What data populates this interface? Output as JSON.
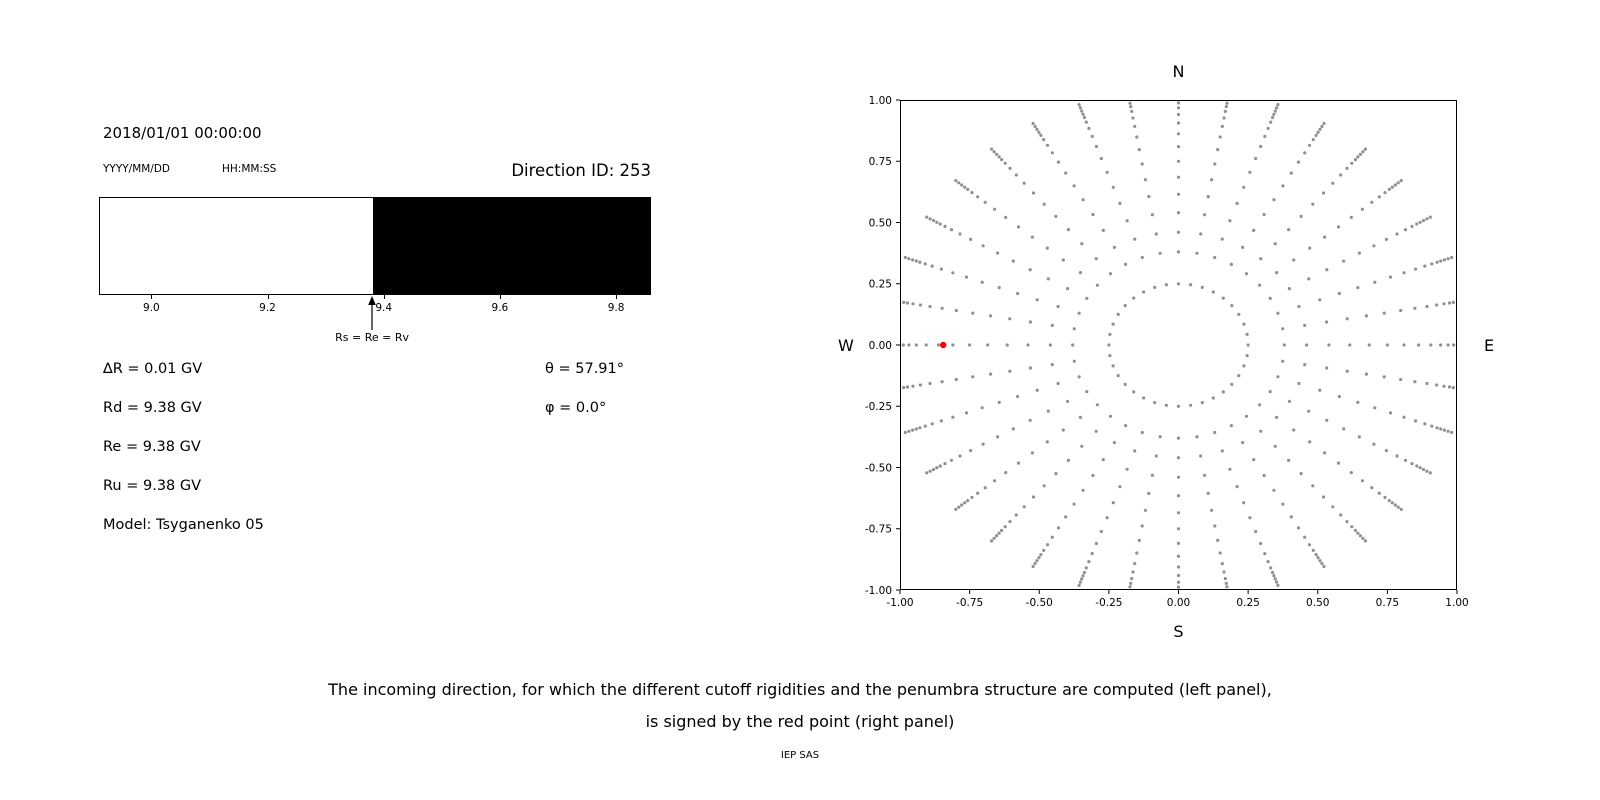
{
  "figure": {
    "background": "#ffffff"
  },
  "header": {
    "timestamp": "2018/01/01 00:00:00",
    "date_format_label": "YYYY/MM/DD",
    "time_format_label": "HH:MM:SS",
    "direction_id": "Direction ID: 253"
  },
  "left_panel": {
    "info_left": [
      "∆R = 0.01 GV",
      "Rd = 9.38 GV",
      "Re = 9.38 GV",
      "Ru = 9.38 GV",
      "Model: Tsyganenko 05"
    ],
    "info_right": [
      "θ = 57.91°",
      "φ = 0.0°"
    ]
  },
  "right_panel": {
    "compass": {
      "top": "N",
      "bottom": "S",
      "left": "W",
      "right": "E"
    }
  },
  "caption": {
    "line1": "The incoming direction, for which the different cutoff rigidities and the penumbra structure are computed (left panel),",
    "line2": "is signed by the red point (right panel)",
    "credit": "IEP SAS"
  },
  "chart_data": [
    {
      "id": "penumbra-structure",
      "type": "area",
      "title": "Direction ID: 253",
      "xlim": [
        8.91,
        9.86
      ],
      "xticks": [
        9.0,
        9.2,
        9.4,
        9.6,
        9.8
      ],
      "xtick_labels": [
        "9.0",
        "9.2",
        "9.4",
        "9.6",
        "9.8"
      ],
      "boundary": 9.38,
      "regions": [
        {
          "from": 8.91,
          "to": 9.38,
          "color": "#ffffff",
          "state": "allowed"
        },
        {
          "from": 9.38,
          "to": 9.86,
          "color": "#000000",
          "state": "forbidden"
        }
      ],
      "annotation": {
        "x": 9.38,
        "label": "Rs = Re = Rv"
      },
      "values": {
        "delta_R_GV": 0.01,
        "Rd_GV": 9.38,
        "Re_GV": 9.38,
        "Ru_GV": 9.38,
        "theta_deg": 57.91,
        "phi_deg": 0.0,
        "model": "Tsyganenko 05"
      }
    },
    {
      "id": "incoming-direction-map",
      "type": "scatter",
      "xlim": [
        -1.0,
        1.0
      ],
      "ylim": [
        -1.0,
        1.0
      ],
      "xticks": [
        -1.0,
        -0.75,
        -0.5,
        -0.25,
        0.0,
        0.25,
        0.5,
        0.75,
        1.0
      ],
      "yticks": [
        -1.0,
        -0.75,
        -0.5,
        -0.25,
        0.0,
        0.25,
        0.5,
        0.75,
        1.0
      ],
      "xtick_labels": [
        "-1.00",
        "-0.75",
        "-0.50",
        "-0.25",
        "0.00",
        "0.25",
        "0.50",
        "0.75",
        "1.00"
      ],
      "ytick_labels": [
        "-1.00",
        "-0.75",
        "-0.50",
        "-0.25",
        "0.00",
        "0.25",
        "0.50",
        "0.75",
        "1.00"
      ],
      "compass": {
        "top": "N",
        "bottom": "S",
        "left": "W",
        "right": "E"
      },
      "grid": false,
      "marker_color": "#909090",
      "pattern": {
        "type": "radial-spokes",
        "spoke_count": 36,
        "angle_step_deg": 10,
        "ring_radius": 0.25,
        "spoke_radii": [
          0.38,
          0.46,
          0.54,
          0.615,
          0.685,
          0.75,
          0.81,
          0.862,
          0.906,
          0.941,
          0.968,
          0.988,
          1.002,
          1.016,
          1.03,
          1.044
        ]
      },
      "highlight_point": {
        "x": -0.845,
        "y": 0.0,
        "color": "#ff0000",
        "meaning": "selected incoming direction"
      }
    }
  ]
}
